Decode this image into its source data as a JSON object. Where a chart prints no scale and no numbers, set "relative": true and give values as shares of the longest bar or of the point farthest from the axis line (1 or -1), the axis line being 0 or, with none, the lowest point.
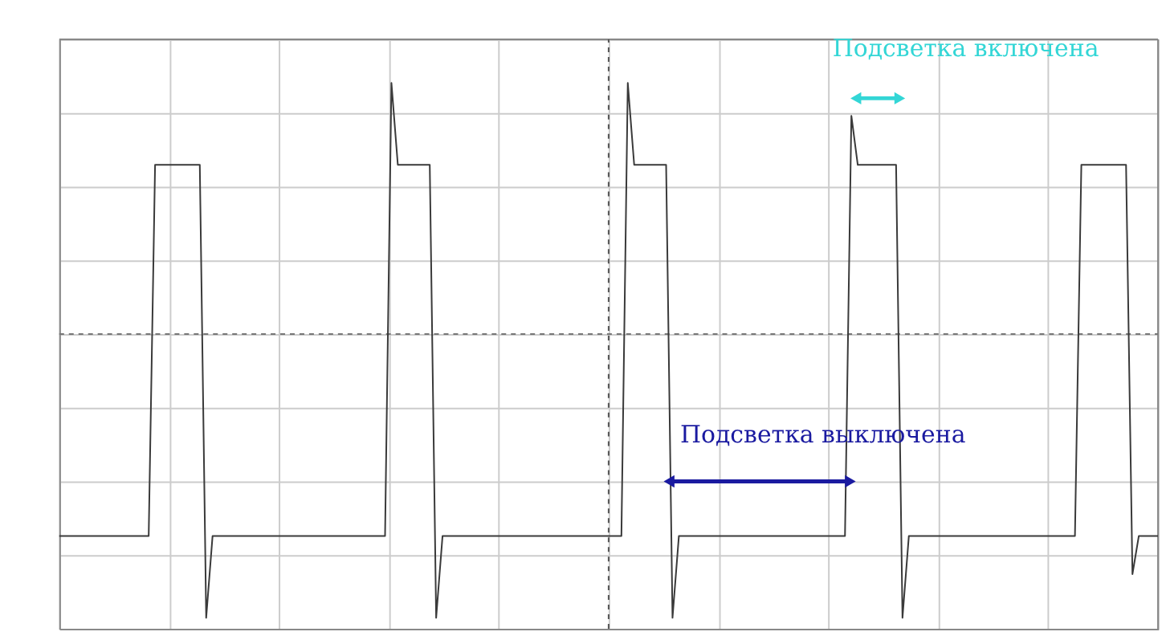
{
  "chart_data": {
    "type": "line",
    "relative": true,
    "grid": true,
    "legend": false,
    "marker": "none",
    "line_style": "solid",
    "categories": [
      null,
      null,
      null,
      null,
      null,
      null,
      null,
      null,
      null,
      null,
      null,
      null,
      null,
      null,
      null,
      null,
      null,
      null,
      null,
      null,
      null,
      null,
      null,
      null,
      null,
      null,
      null,
      null,
      null,
      null,
      null,
      null,
      null,
      null,
      null,
      null,
      null,
      null,
      null,
      null,
      null,
      null,
      null,
      null,
      null,
      null,
      null,
      null,
      null,
      null,
      null,
      null,
      null,
      null,
      null,
      null,
      null,
      null,
      null,
      null,
      null,
      null,
      null,
      null,
      null,
      null,
      null,
      null,
      null,
      null,
      null,
      null,
      null,
      null,
      null,
      null,
      null,
      null,
      null,
      null,
      null,
      null,
      null,
      null,
      null,
      null,
      null,
      null,
      null,
      null,
      null,
      null,
      null,
      null,
      null,
      null,
      null,
      null,
      null,
      null,
      null,
      null,
      null,
      null,
      null,
      null,
      null,
      null,
      null,
      null,
      null,
      null,
      null,
      null,
      null,
      null,
      null,
      null,
      null,
      null,
      null,
      null,
      null,
      null,
      null,
      null,
      null,
      null,
      null,
      null,
      null,
      null,
      null,
      null,
      null,
      null,
      null,
      null,
      null,
      null,
      null,
      null,
      null,
      null,
      null,
      null,
      null,
      null,
      null,
      null,
      null,
      null,
      null,
      null,
      null,
      null,
      null,
      null,
      null,
      null,
      null,
      null,
      null,
      null,
      null,
      null,
      null,
      null,
      null,
      null,
      null,
      null,
      null
    ],
    "series": [
      {
        "color": "#3a3a3a",
        "values": [
          0.17,
          0.17,
          0.17,
          0.17,
          0.17,
          0.17,
          0.17,
          0.17,
          0.17,
          0.17,
          0.17,
          0.17,
          0.17,
          0.17,
          0.17,
          0.85,
          0.85,
          0.85,
          0.85,
          0.85,
          0.85,
          0.85,
          0.85,
          0.02,
          0.17,
          0.17,
          0.17,
          0.17,
          0.17,
          0.17,
          0.17,
          0.17,
          0.17,
          0.17,
          0.17,
          0.17,
          0.17,
          0.17,
          0.17,
          0.17,
          0.17,
          0.17,
          0.17,
          0.17,
          0.17,
          0.17,
          0.17,
          0.17,
          0.17,
          0.17,
          0.17,
          0.17,
          1,
          0.85,
          0.85,
          0.85,
          0.85,
          0.85,
          0.85,
          0.02,
          0.17,
          0.17,
          0.17,
          0.17,
          0.17,
          0.17,
          0.17,
          0.17,
          0.17,
          0.17,
          0.17,
          0.17,
          0.17,
          0.17,
          0.17,
          0.17,
          0.17,
          0.17,
          0.17,
          0.17,
          0.17,
          0.17,
          0.17,
          0.17,
          0.17,
          0.17,
          0.17,
          0.17,
          0.17,
          1,
          0.85,
          0.85,
          0.85,
          0.85,
          0.85,
          0.85,
          0.02,
          0.17,
          0.17,
          0.17,
          0.17,
          0.17,
          0.17,
          0.17,
          0.17,
          0.17,
          0.17,
          0.17,
          0.17,
          0.17,
          0.17,
          0.17,
          0.17,
          0.17,
          0.17,
          0.17,
          0.17,
          0.17,
          0.17,
          0.17,
          0.17,
          0.17,
          0.17,
          0.17,
          0.94,
          0.85,
          0.85,
          0.85,
          0.85,
          0.85,
          0.85,
          0.85,
          0.02,
          0.17,
          0.17,
          0.17,
          0.17,
          0.17,
          0.17,
          0.17,
          0.17,
          0.17,
          0.17,
          0.17,
          0.17,
          0.17,
          0.17,
          0.17,
          0.17,
          0.17,
          0.17,
          0.17,
          0.17,
          0.17,
          0.17,
          0.17,
          0.17,
          0.17,
          0.17,
          0.17,
          0.85,
          0.85,
          0.85,
          0.85,
          0.85,
          0.85,
          0.85,
          0.85,
          0.1,
          0.17,
          0.17,
          0.17,
          0.17
        ]
      }
    ],
    "ref_lines": [
      {
        "axis": "y",
        "value": 0.54,
        "color": "#777777",
        "line_style": "dashed"
      }
    ],
    "annotations": [
      "Подсветка включена",
      "Подсветка выключена"
    ]
  }
}
